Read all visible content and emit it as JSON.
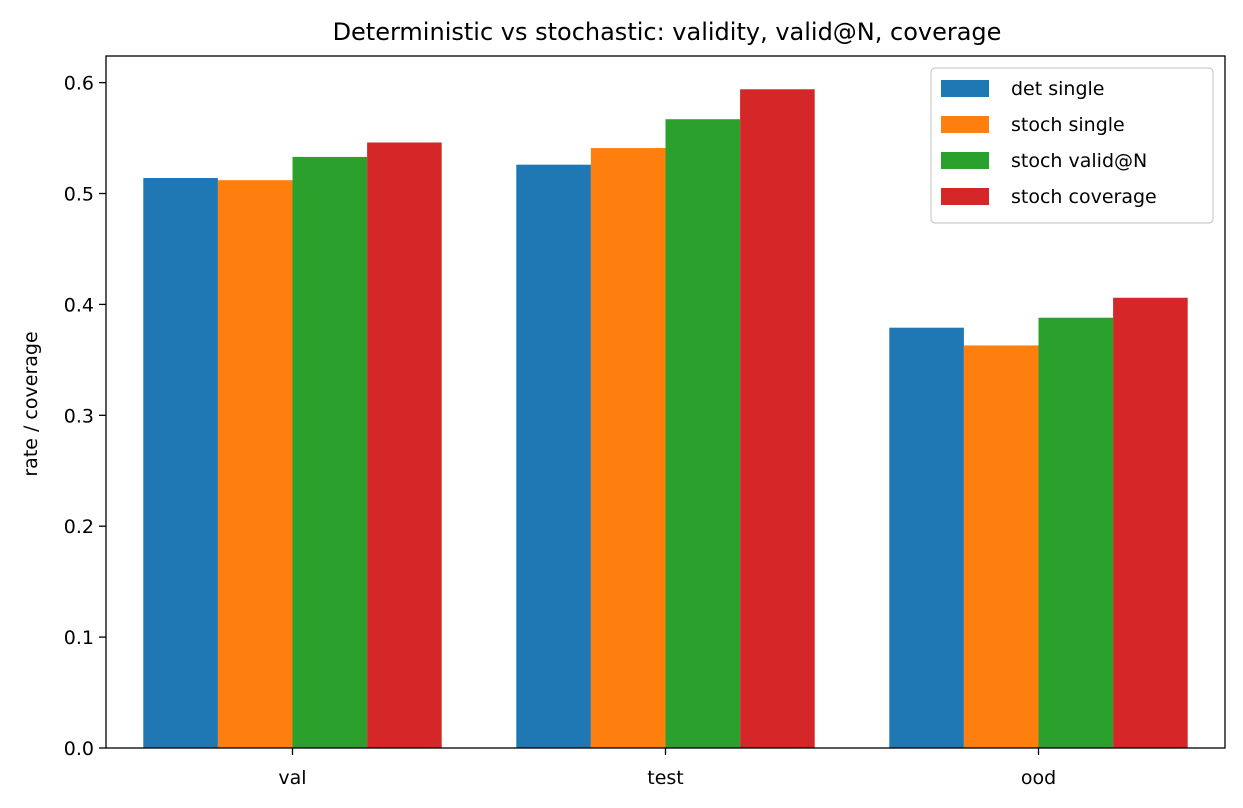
{
  "chart_data": {
    "type": "bar",
    "title": "Deterministic vs stochastic: validity, valid@N, coverage",
    "xlabel": "",
    "ylabel": "rate / coverage",
    "categories": [
      "val",
      "test",
      "ood"
    ],
    "series": [
      {
        "name": "det single",
        "color": "#1f77b4",
        "values": [
          0.514,
          0.526,
          0.379
        ]
      },
      {
        "name": "stoch single",
        "color": "#ff7f0e",
        "values": [
          0.512,
          0.541,
          0.363
        ]
      },
      {
        "name": "stoch valid@N",
        "color": "#2ca02c",
        "values": [
          0.533,
          0.567,
          0.388
        ]
      },
      {
        "name": "stoch coverage",
        "color": "#d62728",
        "values": [
          0.546,
          0.594,
          0.406
        ]
      }
    ],
    "ylim": [
      0,
      0.624
    ],
    "yticks": [
      "0.0",
      "0.1",
      "0.2",
      "0.3",
      "0.4",
      "0.5",
      "0.6"
    ],
    "grid": false,
    "legend_position": "top-right"
  }
}
